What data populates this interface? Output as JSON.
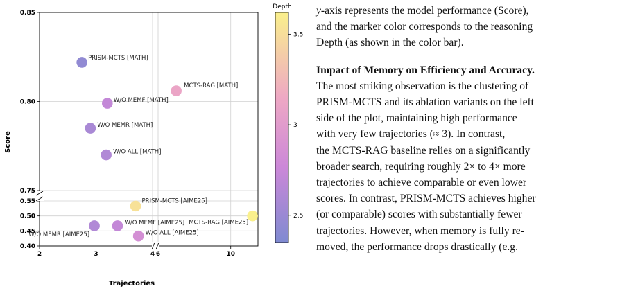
{
  "chart_data": {
    "type": "scatter",
    "xlabel": "Trajectories",
    "ylabel": "Score",
    "colorbar": {
      "label": "Depth",
      "range": [
        2.35,
        3.62
      ],
      "ticks": [
        "2.5",
        "3",
        "3.5"
      ],
      "tick_values": [
        2.5,
        3.0,
        3.5
      ],
      "colormap": [
        "#7f8ad1",
        "#cc88d8",
        "#eea8c4",
        "#faf08c"
      ]
    },
    "x_axis": {
      "segments": [
        {
          "range": [
            2,
            4
          ],
          "ticks": [
            2,
            3,
            4
          ],
          "tick_labels": [
            "2",
            "3",
            "4"
          ]
        },
        {
          "range": [
            6,
            11.5
          ],
          "ticks": [
            6,
            10
          ],
          "tick_labels": [
            "6",
            "10"
          ]
        }
      ]
    },
    "y_axis": {
      "segments": [
        {
          "range": [
            0.4,
            0.55
          ],
          "ticks": [
            0.4,
            0.45,
            0.5,
            0.55
          ],
          "tick_labels": [
            "0.40",
            "0.45",
            "0.50",
            "0.55"
          ]
        },
        {
          "range": [
            0.75,
            0.85
          ],
          "ticks": [
            0.75,
            0.8,
            0.85
          ],
          "tick_labels": [
            "0.75",
            "0.80",
            "0.85"
          ]
        }
      ]
    },
    "grid": true,
    "points": [
      {
        "label": "PRISM-MCTS [MATH]",
        "x": 2.75,
        "y": 0.822,
        "depth": 2.45
      },
      {
        "label": "MCTS-RAG [MATH]",
        "x": 7.0,
        "y": 0.806,
        "depth": 3.12
      },
      {
        "label": "W/O MEMF [MATH]",
        "x": 3.2,
        "y": 0.799,
        "depth": 2.72
      },
      {
        "label": "W/O MEMR [MATH]",
        "x": 2.9,
        "y": 0.785,
        "depth": 2.58
      },
      {
        "label": "W/O ALL [MATH]",
        "x": 3.18,
        "y": 0.77,
        "depth": 2.62
      },
      {
        "label": "PRISM-MCTS [AIME25]",
        "x": 3.7,
        "y": 0.533,
        "depth": 3.52
      },
      {
        "label": "MCTS-RAG [AIME25]",
        "x": 11.2,
        "y": 0.5,
        "depth": 3.62
      },
      {
        "label": "W/O MEMF [AIME25]",
        "x": 3.38,
        "y": 0.467,
        "depth": 2.72
      },
      {
        "label": "W/O MEMR [AIME25]",
        "x": 2.97,
        "y": 0.467,
        "depth": 2.62
      },
      {
        "label": "W/O ALL [AIME25]",
        "x": 3.75,
        "y": 0.433,
        "depth": 2.85
      }
    ]
  },
  "text": {
    "intro_line1_var": "y",
    "intro_line1": "-axis represents the model performance (Score),",
    "intro_line2": "and the marker color corresponds to the reasoning",
    "intro_line3": "Depth (as shown in the color bar).",
    "heading": "Impact of Memory on Efficiency and Accuracy.",
    "lines": [
      "The most striking observation is the clustering of",
      "PRISM-MCTS and its ablation variants on the left",
      "side of the plot, maintaining high performance",
      "with very few trajectories (≈  3).   In contrast,",
      "the MCTS-RAG baseline relies on a significantly",
      "broader search, requiring roughly 2× to 4× more",
      "trajectories to achieve comparable or even lower",
      "scores. In contrast, PRISM-MCTS achieves higher",
      "(or comparable) scores with substantially fewer",
      "trajectories.  However, when memory is fully re-",
      "moved, the performance drops drastically (e.g."
    ]
  }
}
